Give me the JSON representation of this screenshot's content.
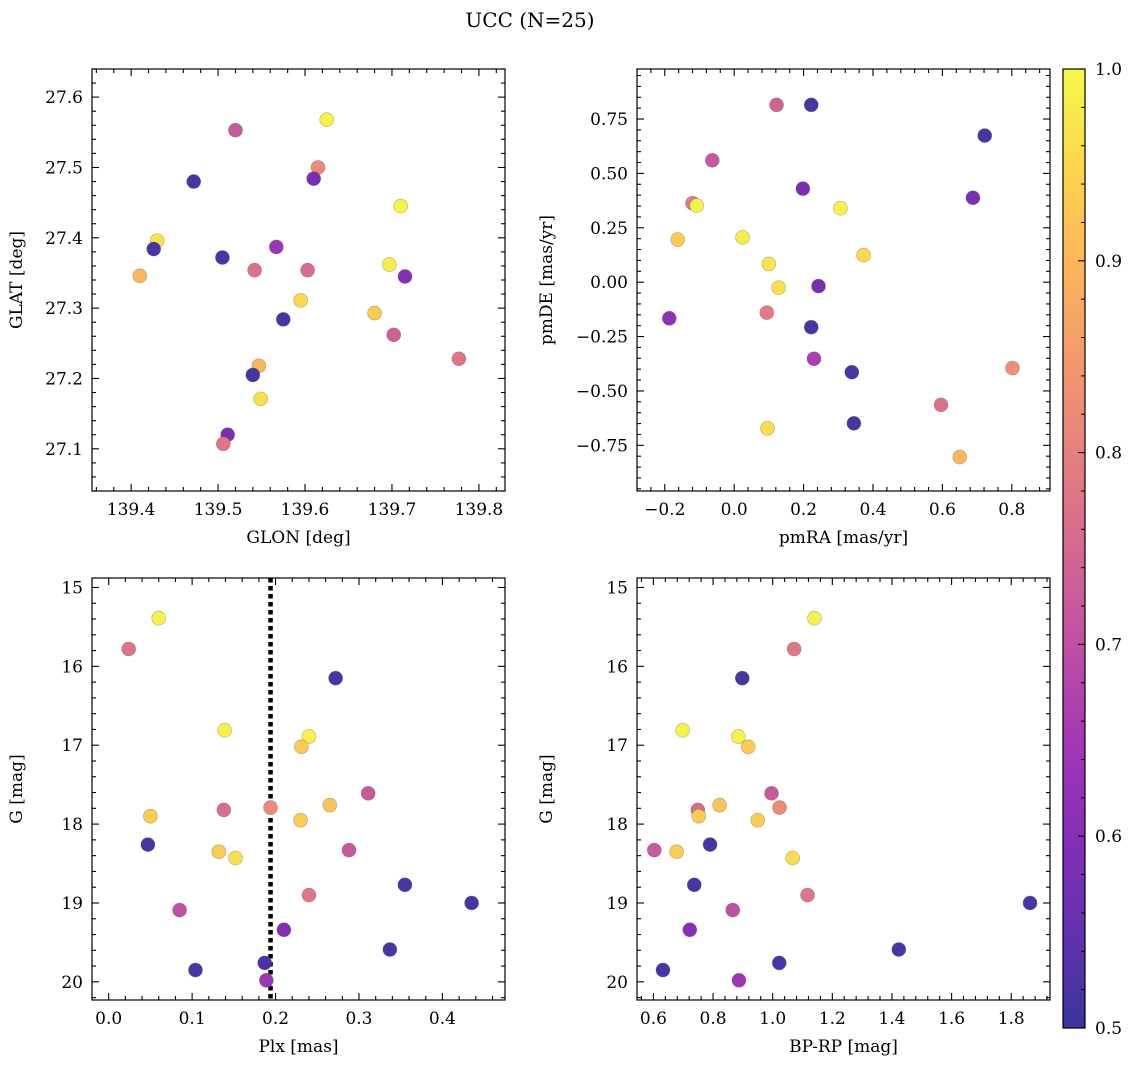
{
  "figure": {
    "title": "UCC (N=25)"
  },
  "colorbar": {
    "range": [
      0.5,
      1.0
    ],
    "ticks": [
      0.5,
      0.6,
      0.7,
      0.8,
      0.9,
      1.0
    ],
    "tick_labels": [
      "0.5",
      "0.6",
      "0.7",
      "0.8",
      "0.9",
      "1.0"
    ],
    "colormap": "plasma"
  },
  "chart_data": [
    {
      "type": "scatter",
      "id": "glon-glat",
      "xlabel": "GLON [deg]",
      "ylabel": "GLAT [deg]",
      "xlim": [
        139.355,
        139.83
      ],
      "ylim": [
        27.04,
        27.64
      ],
      "y_inverted": false,
      "xticks": [
        139.4,
        139.5,
        139.6,
        139.7,
        139.8
      ],
      "xtick_labels": [
        "139.4",
        "139.5",
        "139.6",
        "139.7",
        "139.8"
      ],
      "yticks": [
        27.1,
        27.2,
        27.3,
        27.4,
        27.5,
        27.6
      ],
      "ytick_labels": [
        "27.1",
        "27.2",
        "27.3",
        "27.4",
        "27.5",
        "27.6"
      ],
      "points": [
        {
          "x": 139.625,
          "y": 27.568,
          "c": 0.99
        },
        {
          "x": 139.52,
          "y": 27.553,
          "c": 0.72
        },
        {
          "x": 139.615,
          "y": 27.5,
          "c": 0.82
        },
        {
          "x": 139.472,
          "y": 27.48,
          "c": 0.52
        },
        {
          "x": 139.61,
          "y": 27.484,
          "c": 0.58
        },
        {
          "x": 139.71,
          "y": 27.445,
          "c": 0.99
        },
        {
          "x": 139.43,
          "y": 27.396,
          "c": 0.97
        },
        {
          "x": 139.426,
          "y": 27.384,
          "c": 0.52
        },
        {
          "x": 139.567,
          "y": 27.387,
          "c": 0.64
        },
        {
          "x": 139.505,
          "y": 27.372,
          "c": 0.52
        },
        {
          "x": 139.697,
          "y": 27.362,
          "c": 0.98
        },
        {
          "x": 139.542,
          "y": 27.354,
          "c": 0.77
        },
        {
          "x": 139.603,
          "y": 27.354,
          "c": 0.76
        },
        {
          "x": 139.41,
          "y": 27.346,
          "c": 0.9
        },
        {
          "x": 139.715,
          "y": 27.345,
          "c": 0.6
        },
        {
          "x": 139.595,
          "y": 27.311,
          "c": 0.95
        },
        {
          "x": 139.68,
          "y": 27.293,
          "c": 0.93
        },
        {
          "x": 139.575,
          "y": 27.284,
          "c": 0.52
        },
        {
          "x": 139.702,
          "y": 27.262,
          "c": 0.73
        },
        {
          "x": 139.777,
          "y": 27.228,
          "c": 0.78
        },
        {
          "x": 139.547,
          "y": 27.218,
          "c": 0.9
        },
        {
          "x": 139.54,
          "y": 27.205,
          "c": 0.52
        },
        {
          "x": 139.549,
          "y": 27.171,
          "c": 0.96
        },
        {
          "x": 139.511,
          "y": 27.12,
          "c": 0.58
        },
        {
          "x": 139.506,
          "y": 27.107,
          "c": 0.78
        }
      ]
    },
    {
      "type": "scatter",
      "id": "pmra-pmde",
      "xlabel": "pmRA [mas/yr]",
      "ylabel": "pmDE [mas/yr]",
      "xlim": [
        -0.28,
        0.91
      ],
      "ylim": [
        -0.96,
        0.98
      ],
      "y_inverted": false,
      "xticks": [
        -0.2,
        0.0,
        0.2,
        0.4,
        0.6,
        0.8
      ],
      "xtick_labels": [
        "−0.2",
        "0.0",
        "0.2",
        "0.4",
        "0.6",
        "0.8"
      ],
      "yticks": [
        -0.75,
        -0.5,
        -0.25,
        0.0,
        0.25,
        0.5,
        0.75
      ],
      "ytick_labels": [
        "−0.75",
        "−0.50",
        "−0.25",
        "0.00",
        "0.25",
        "0.50",
        "0.75"
      ],
      "points": [
        {
          "x": 0.122,
          "y": 0.815,
          "c": 0.74
        },
        {
          "x": 0.222,
          "y": 0.815,
          "c": 0.52
        },
        {
          "x": 0.722,
          "y": 0.674,
          "c": 0.52
        },
        {
          "x": -0.063,
          "y": 0.56,
          "c": 0.72
        },
        {
          "x": 0.198,
          "y": 0.43,
          "c": 0.58
        },
        {
          "x": 0.688,
          "y": 0.388,
          "c": 0.58
        },
        {
          "x": -0.12,
          "y": 0.363,
          "c": 0.79
        },
        {
          "x": -0.108,
          "y": 0.352,
          "c": 0.99
        },
        {
          "x": 0.306,
          "y": 0.34,
          "c": 0.99
        },
        {
          "x": 0.024,
          "y": 0.206,
          "c": 0.98
        },
        {
          "x": -0.163,
          "y": 0.196,
          "c": 0.93
        },
        {
          "x": 0.373,
          "y": 0.124,
          "c": 0.95
        },
        {
          "x": 0.1,
          "y": 0.084,
          "c": 0.97
        },
        {
          "x": 0.128,
          "y": -0.025,
          "c": 0.96
        },
        {
          "x": 0.243,
          "y": -0.018,
          "c": 0.58
        },
        {
          "x": 0.094,
          "y": -0.14,
          "c": 0.79
        },
        {
          "x": -0.187,
          "y": -0.166,
          "c": 0.62
        },
        {
          "x": 0.222,
          "y": -0.207,
          "c": 0.52
        },
        {
          "x": 0.23,
          "y": -0.352,
          "c": 0.66
        },
        {
          "x": 0.339,
          "y": -0.414,
          "c": 0.52
        },
        {
          "x": 0.802,
          "y": -0.395,
          "c": 0.83
        },
        {
          "x": 0.596,
          "y": -0.564,
          "c": 0.77
        },
        {
          "x": 0.345,
          "y": -0.649,
          "c": 0.52
        },
        {
          "x": 0.096,
          "y": -0.672,
          "c": 0.96
        },
        {
          "x": 0.65,
          "y": -0.804,
          "c": 0.9
        }
      ]
    },
    {
      "type": "scatter",
      "id": "plx-g",
      "xlabel": "Plx [mas]",
      "ylabel": "G [mag]",
      "xlim": [
        -0.02,
        0.475
      ],
      "ylim": [
        14.88,
        20.23
      ],
      "y_inverted": true,
      "xticks": [
        0.0,
        0.1,
        0.2,
        0.3,
        0.4
      ],
      "xtick_labels": [
        "0.0",
        "0.1",
        "0.2",
        "0.3",
        "0.4"
      ],
      "yticks": [
        15,
        16,
        17,
        18,
        19,
        20
      ],
      "ytick_labels": [
        "15",
        "16",
        "17",
        "18",
        "19",
        "20"
      ],
      "vline": {
        "x": 0.194,
        "style": "dotted"
      },
      "points": [
        {
          "x": 0.06,
          "y": 15.39,
          "c": 0.99
        },
        {
          "x": 0.024,
          "y": 15.78,
          "c": 0.78
        },
        {
          "x": 0.272,
          "y": 16.15,
          "c": 0.52
        },
        {
          "x": 0.139,
          "y": 16.81,
          "c": 0.99
        },
        {
          "x": 0.24,
          "y": 16.89,
          "c": 0.99
        },
        {
          "x": 0.231,
          "y": 17.02,
          "c": 0.93
        },
        {
          "x": 0.311,
          "y": 17.61,
          "c": 0.72
        },
        {
          "x": 0.265,
          "y": 17.76,
          "c": 0.92
        },
        {
          "x": 0.194,
          "y": 17.79,
          "c": 0.82
        },
        {
          "x": 0.138,
          "y": 17.82,
          "c": 0.76
        },
        {
          "x": 0.05,
          "y": 17.9,
          "c": 0.93
        },
        {
          "x": 0.23,
          "y": 17.95,
          "c": 0.93
        },
        {
          "x": 0.047,
          "y": 18.26,
          "c": 0.52
        },
        {
          "x": 0.288,
          "y": 18.33,
          "c": 0.72
        },
        {
          "x": 0.132,
          "y": 18.35,
          "c": 0.93
        },
        {
          "x": 0.152,
          "y": 18.43,
          "c": 0.96
        },
        {
          "x": 0.355,
          "y": 18.77,
          "c": 0.52
        },
        {
          "x": 0.24,
          "y": 18.9,
          "c": 0.78
        },
        {
          "x": 0.435,
          "y": 19.0,
          "c": 0.52
        },
        {
          "x": 0.085,
          "y": 19.09,
          "c": 0.7
        },
        {
          "x": 0.21,
          "y": 19.34,
          "c": 0.6
        },
        {
          "x": 0.337,
          "y": 19.59,
          "c": 0.52
        },
        {
          "x": 0.187,
          "y": 19.76,
          "c": 0.52
        },
        {
          "x": 0.104,
          "y": 19.85,
          "c": 0.52
        },
        {
          "x": 0.189,
          "y": 19.98,
          "c": 0.64
        }
      ]
    },
    {
      "type": "scatter",
      "id": "bprp-g",
      "xlabel": "BP-RP [mag]",
      "ylabel": "G [mag]",
      "xlim": [
        0.545,
        1.93
      ],
      "ylim": [
        14.88,
        20.23
      ],
      "y_inverted": true,
      "xticks": [
        0.6,
        0.8,
        1.0,
        1.2,
        1.4,
        1.6,
        1.8
      ],
      "xtick_labels": [
        "0.6",
        "0.8",
        "1.0",
        "1.2",
        "1.4",
        "1.6",
        "1.8"
      ],
      "yticks": [
        15,
        16,
        17,
        18,
        19,
        20
      ],
      "ytick_labels": [
        "15",
        "16",
        "17",
        "18",
        "19",
        "20"
      ],
      "points": [
        {
          "x": 1.14,
          "y": 15.39,
          "c": 0.99
        },
        {
          "x": 1.072,
          "y": 15.78,
          "c": 0.78
        },
        {
          "x": 0.898,
          "y": 16.15,
          "c": 0.52
        },
        {
          "x": 0.698,
          "y": 16.81,
          "c": 0.99
        },
        {
          "x": 0.885,
          "y": 16.89,
          "c": 0.99
        },
        {
          "x": 0.918,
          "y": 17.02,
          "c": 0.93
        },
        {
          "x": 0.996,
          "y": 17.61,
          "c": 0.72
        },
        {
          "x": 0.822,
          "y": 17.76,
          "c": 0.92
        },
        {
          "x": 1.023,
          "y": 17.79,
          "c": 0.82
        },
        {
          "x": 0.749,
          "y": 17.82,
          "c": 0.76
        },
        {
          "x": 0.752,
          "y": 17.9,
          "c": 0.93
        },
        {
          "x": 0.95,
          "y": 17.95,
          "c": 0.93
        },
        {
          "x": 0.79,
          "y": 18.26,
          "c": 0.52
        },
        {
          "x": 0.603,
          "y": 18.33,
          "c": 0.72
        },
        {
          "x": 0.678,
          "y": 18.35,
          "c": 0.93
        },
        {
          "x": 1.067,
          "y": 18.43,
          "c": 0.96
        },
        {
          "x": 0.737,
          "y": 18.77,
          "c": 0.52
        },
        {
          "x": 1.117,
          "y": 18.9,
          "c": 0.78
        },
        {
          "x": 1.863,
          "y": 19.0,
          "c": 0.52
        },
        {
          "x": 0.866,
          "y": 19.09,
          "c": 0.7
        },
        {
          "x": 0.722,
          "y": 19.34,
          "c": 0.6
        },
        {
          "x": 1.423,
          "y": 19.59,
          "c": 0.52
        },
        {
          "x": 1.022,
          "y": 19.76,
          "c": 0.52
        },
        {
          "x": 0.632,
          "y": 19.85,
          "c": 0.52
        },
        {
          "x": 0.887,
          "y": 19.98,
          "c": 0.64
        }
      ]
    }
  ]
}
